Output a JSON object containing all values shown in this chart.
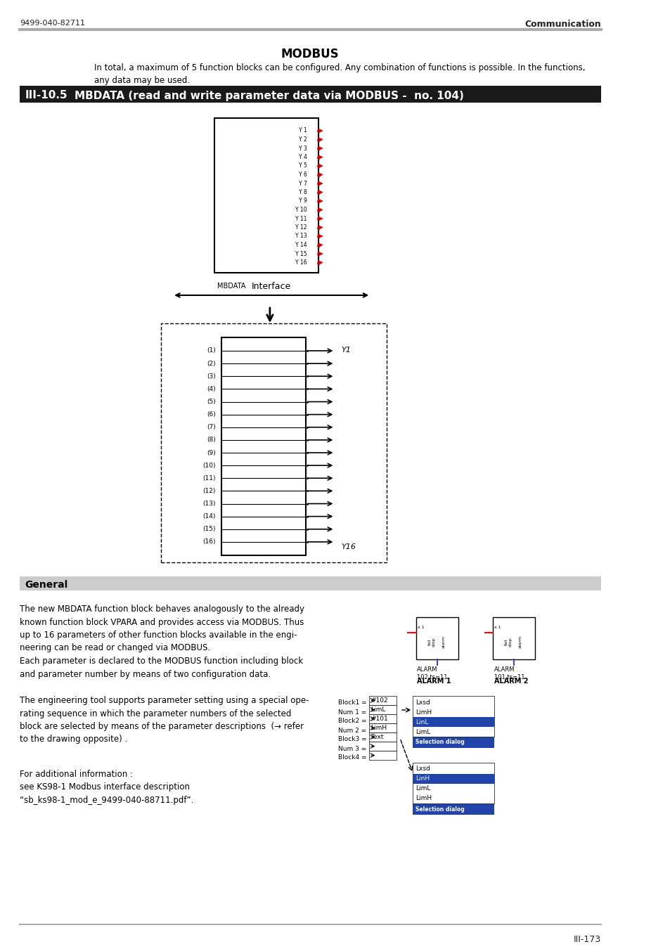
{
  "page_number_left": "9499-040-82711",
  "page_number_right": "Communication",
  "page_footer": "III-173",
  "modbus_title": "MODBUS",
  "modbus_text": "In total, a maximum of 5 function blocks can be configured. Any combination of functions is possible. In the functions,\nany data may be used.",
  "section_number": "III-10.5",
  "section_title": "MBDATA (read and write parameter data via MODBUS -  no. 104)",
  "section_bg": "#1a1a1a",
  "section_text_color": "#ffffff",
  "general_title": "General",
  "general_bg": "#cccccc",
  "general_text1": "The new MBDATA function block behaves analogously to the already\nknown function block VPARA and provides access via MODBUS. Thus\nup to 16 parameters of other function blocks available in the engi-\nneering can be read or changed via MODBUS.\nEach parameter is declared to the MODBUS function including block\nand parameter number by means of two configuration data.",
  "general_text2": "The engineering tool supports parameter setting using a special ope-\nrating sequence in which the parameter numbers of the selected\nblock are selected by means of the parameter descriptions  (→ refer\nto the drawing opposite) .",
  "general_text3": "For additional information :\nsee KS98-1 Modbus interface description\n“sb_ks98-1_mod_e_9499-040-88711.pdf”.",
  "y_labels": [
    "Y 1",
    "Y 2",
    "Y 3",
    "Y 4",
    "Y 5",
    "Y 6",
    "Y 7",
    "Y 8",
    "Y 9",
    "Y 10",
    "Y 11",
    "Y 12",
    "Y 13",
    "Y 14",
    "Y 15",
    "Y 16"
  ],
  "row_labels": [
    "(1)",
    "(2)",
    "(3)",
    "(4)",
    "(5)",
    "(6)",
    "(7)",
    "(8)",
    "(9)",
    "(10)",
    "(11)",
    "(12)",
    "(13)",
    "(14)",
    "(15)",
    "(16)"
  ],
  "background_color": "#ffffff",
  "header_line_color": "#aaaaaa",
  "red_arrow_color": "#cc0000",
  "black_color": "#000000"
}
